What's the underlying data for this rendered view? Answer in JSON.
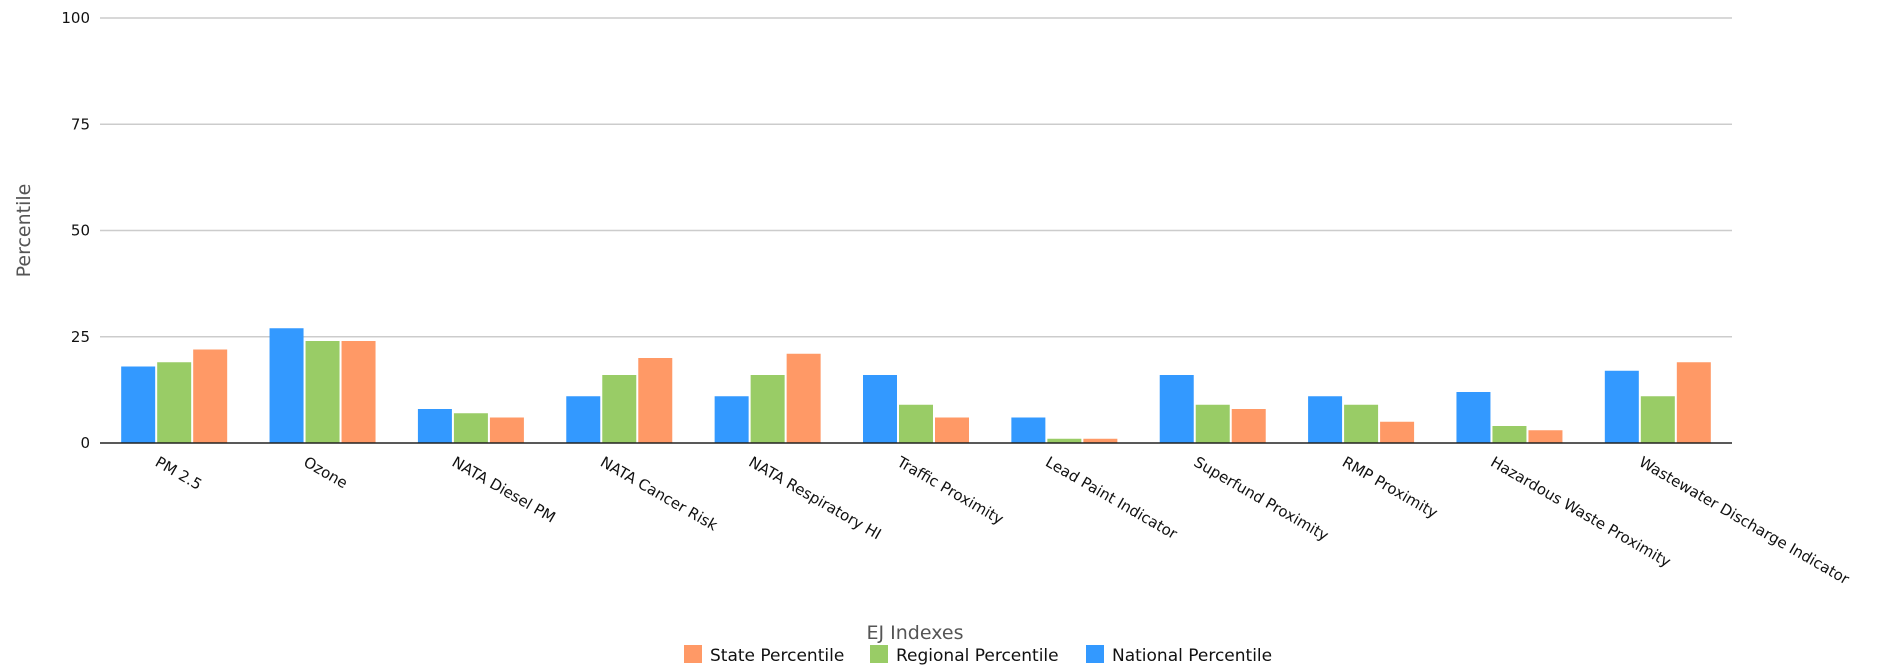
{
  "chart_data": {
    "type": "bar",
    "title": "",
    "xlabel": "EJ Indexes",
    "ylabel": "Percentile",
    "ylim": [
      0,
      100
    ],
    "yticks": [
      0,
      25,
      50,
      75,
      100
    ],
    "grid": true,
    "legend_position": "bottom",
    "categories": [
      "PM 2.5",
      "Ozone",
      "NATA Diesel PM",
      "NATA Cancer Risk",
      "NATA Respiratory HI",
      "Traffic Proximity",
      "Lead Paint Indicator",
      "Superfund Proximity",
      "RMP Proximity",
      "Hazardous Waste Proximity",
      "Wastewater Discharge Indicator"
    ],
    "series": [
      {
        "name": "National Percentile",
        "color": "#3399ff",
        "values": [
          18,
          27,
          8,
          11,
          11,
          16,
          6,
          16,
          11,
          12,
          17
        ]
      },
      {
        "name": "Regional Percentile",
        "color": "#99cc66",
        "values": [
          19,
          24,
          7,
          16,
          16,
          9,
          1,
          9,
          9,
          4,
          11
        ]
      },
      {
        "name": "State Percentile",
        "color": "#ff9966",
        "values": [
          22,
          24,
          6,
          20,
          21,
          6,
          1,
          8,
          5,
          3,
          19
        ]
      }
    ],
    "legend_order": [
      "State Percentile",
      "Regional Percentile",
      "National Percentile"
    ]
  }
}
